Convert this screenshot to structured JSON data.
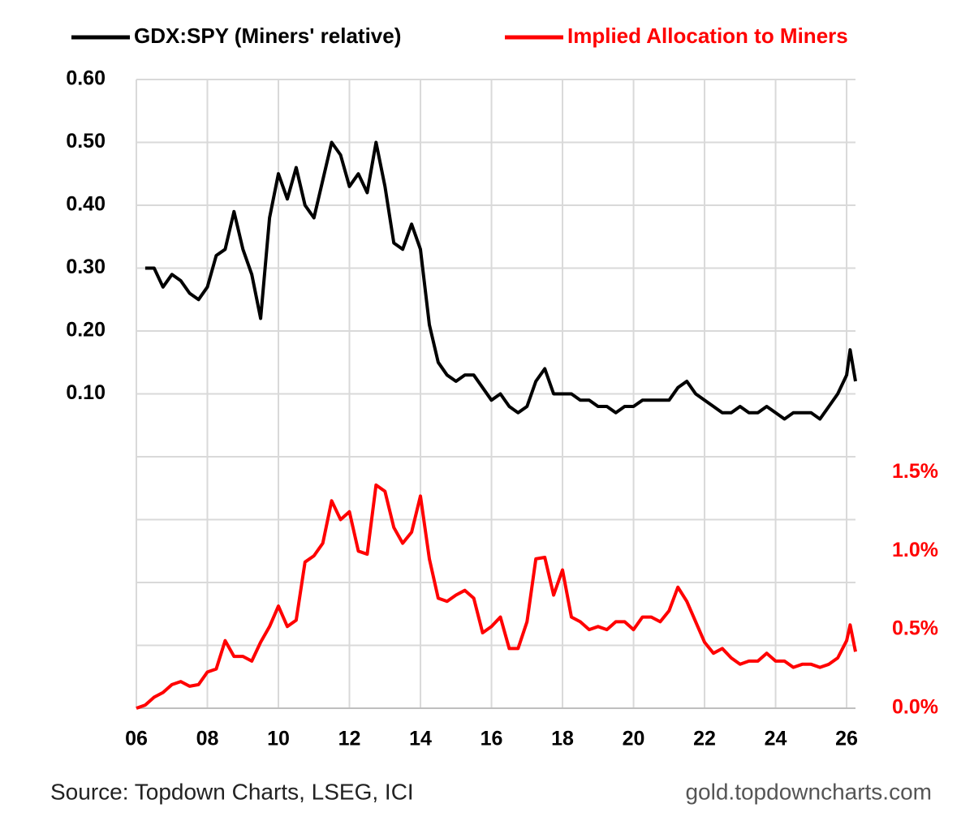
{
  "chart_data": {
    "type": "line",
    "legend": "top",
    "grid": true,
    "x": [
      2006.0,
      2006.25,
      2006.5,
      2006.75,
      2007.0,
      2007.25,
      2007.5,
      2007.75,
      2008.0,
      2008.25,
      2008.5,
      2008.75,
      2009.0,
      2009.25,
      2009.5,
      2009.75,
      2010.0,
      2010.25,
      2010.5,
      2010.75,
      2011.0,
      2011.25,
      2011.5,
      2011.75,
      2012.0,
      2012.25,
      2012.5,
      2012.75,
      2013.0,
      2013.25,
      2013.5,
      2013.75,
      2014.0,
      2014.25,
      2014.5,
      2014.75,
      2015.0,
      2015.25,
      2015.5,
      2015.75,
      2016.0,
      2016.25,
      2016.5,
      2016.75,
      2017.0,
      2017.25,
      2017.5,
      2017.75,
      2018.0,
      2018.25,
      2018.5,
      2018.75,
      2019.0,
      2019.25,
      2019.5,
      2019.75,
      2020.0,
      2020.25,
      2020.5,
      2020.75,
      2021.0,
      2021.25,
      2021.5,
      2021.75,
      2022.0,
      2022.25,
      2022.5,
      2022.75,
      2023.0,
      2023.25,
      2023.5,
      2023.75,
      2024.0,
      2024.25,
      2024.5,
      2024.75,
      2025.0,
      2025.25,
      2025.5,
      2025.75,
      2026.0,
      2026.1,
      2026.25
    ],
    "series": [
      {
        "name": "GDX:SPY (Miners' relative)",
        "color": "#000000",
        "axis": "y",
        "values": [
          null,
          0.3,
          0.3,
          0.27,
          0.29,
          0.28,
          0.26,
          0.25,
          0.27,
          0.32,
          0.33,
          0.39,
          0.33,
          0.29,
          0.22,
          0.38,
          0.45,
          0.41,
          0.46,
          0.4,
          0.38,
          0.44,
          0.5,
          0.48,
          0.43,
          0.45,
          0.42,
          0.5,
          0.43,
          0.34,
          0.33,
          0.37,
          0.33,
          0.21,
          0.15,
          0.13,
          0.12,
          0.13,
          0.13,
          0.11,
          0.09,
          0.1,
          0.08,
          0.07,
          0.08,
          0.12,
          0.14,
          0.1,
          0.1,
          0.1,
          0.09,
          0.09,
          0.08,
          0.08,
          0.07,
          0.08,
          0.08,
          0.09,
          0.09,
          0.09,
          0.09,
          0.11,
          0.12,
          0.1,
          0.09,
          0.08,
          0.07,
          0.07,
          0.08,
          0.07,
          0.07,
          0.08,
          0.07,
          0.06,
          0.07,
          0.07,
          0.07,
          0.06,
          0.08,
          0.1,
          0.13,
          0.17,
          0.12
        ]
      },
      {
        "name": "Implied Allocation to Miners",
        "color": "#ff0000",
        "axis": "y2",
        "values": [
          0.0,
          0.02,
          0.07,
          0.1,
          0.15,
          0.17,
          0.14,
          0.15,
          0.23,
          0.25,
          0.43,
          0.33,
          0.33,
          0.3,
          0.42,
          0.52,
          0.65,
          0.52,
          0.56,
          0.93,
          0.97,
          1.05,
          1.32,
          1.2,
          1.25,
          1.0,
          0.98,
          1.42,
          1.38,
          1.15,
          1.05,
          1.12,
          1.35,
          0.95,
          0.7,
          0.68,
          0.72,
          0.75,
          0.7,
          0.48,
          0.52,
          0.58,
          0.38,
          0.38,
          0.55,
          0.95,
          0.96,
          0.72,
          0.88,
          0.58,
          0.55,
          0.5,
          0.52,
          0.5,
          0.55,
          0.55,
          0.5,
          0.58,
          0.58,
          0.55,
          0.62,
          0.77,
          0.68,
          0.55,
          0.42,
          0.35,
          0.38,
          0.32,
          0.28,
          0.3,
          0.3,
          0.35,
          0.3,
          0.3,
          0.26,
          0.28,
          0.28,
          0.26,
          0.28,
          0.32,
          0.43,
          0.53,
          0.36
        ]
      }
    ],
    "xlim": [
      2006,
      2026.25
    ],
    "xticks": [
      {
        "value": 2006,
        "label": "06"
      },
      {
        "value": 2008,
        "label": "08"
      },
      {
        "value": 2010,
        "label": "10"
      },
      {
        "value": 2012,
        "label": "12"
      },
      {
        "value": 2014,
        "label": "14"
      },
      {
        "value": 2016,
        "label": "16"
      },
      {
        "value": 2018,
        "label": "18"
      },
      {
        "value": 2020,
        "label": "20"
      },
      {
        "value": 2022,
        "label": "22"
      },
      {
        "value": 2024,
        "label": "24"
      },
      {
        "value": 2026,
        "label": "26"
      }
    ],
    "ylim": [
      -0.4,
      0.6
    ],
    "yticks": [
      {
        "value": 0.1,
        "label": "0.10"
      },
      {
        "value": 0.2,
        "label": "0.20"
      },
      {
        "value": 0.3,
        "label": "0.30"
      },
      {
        "value": 0.4,
        "label": "0.40"
      },
      {
        "value": 0.5,
        "label": "0.50"
      },
      {
        "value": 0.6,
        "label": "0.60"
      }
    ],
    "ygrid": [
      -0.3,
      -0.2,
      -0.1,
      0,
      0.1,
      0.2,
      0.3,
      0.4,
      0.5,
      0.6
    ],
    "y2lim": [
      0,
      4
    ],
    "y2ticks": [
      {
        "value": 0,
        "label": "0.0%"
      },
      {
        "value": 0.5,
        "label": "0.5%"
      },
      {
        "value": 1.0,
        "label": "1.0%"
      },
      {
        "value": 1.5,
        "label": "1.5%"
      }
    ],
    "source": "Source: Topdown Charts, LSEG, ICI",
    "credit": "gold.topdowncharts.com"
  }
}
